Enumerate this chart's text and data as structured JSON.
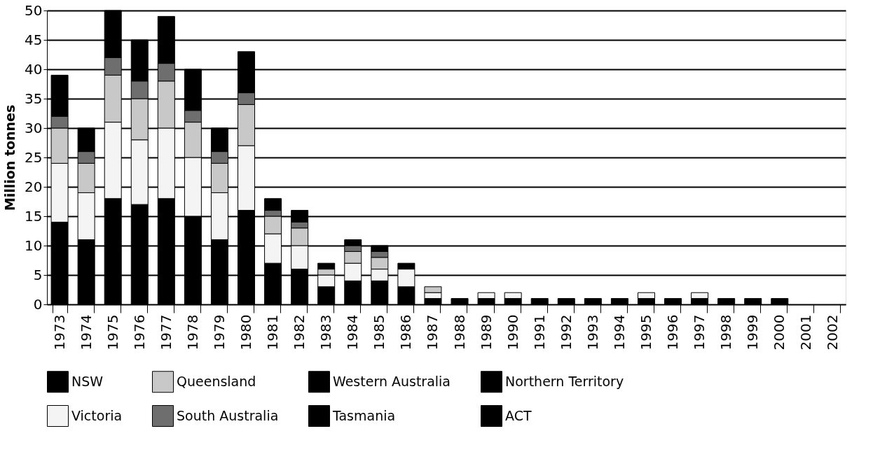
{
  "chart_data": {
    "type": "bar",
    "stacked": true,
    "ylabel": "Million tonnes",
    "categories": [
      "1973",
      "1974",
      "1975",
      "1976",
      "1977",
      "1978",
      "1979",
      "1980",
      "1981",
      "1982",
      "1983",
      "1984",
      "1985",
      "1986",
      "1987",
      "1988",
      "1989",
      "1990",
      "1991",
      "1992",
      "1993",
      "1994",
      "1995",
      "1996",
      "1997",
      "1998",
      "1999",
      "2000",
      "2001",
      "2002"
    ],
    "series": [
      {
        "name": "NSW",
        "color": "#000000",
        "values": [
          14,
          11,
          18,
          17,
          18,
          15,
          11,
          16,
          7,
          6,
          3,
          4,
          4,
          3,
          1,
          1,
          1,
          1,
          1,
          1,
          1,
          1,
          1,
          1,
          1,
          1,
          1,
          1,
          null,
          null
        ]
      },
      {
        "name": "Victoria",
        "color": "#f4f4f4",
        "values": [
          10,
          8,
          13,
          11,
          12,
          10,
          8,
          11,
          5,
          4,
          2,
          3,
          2,
          3,
          1,
          null,
          1,
          1,
          null,
          null,
          null,
          null,
          1,
          null,
          1,
          null,
          null,
          null,
          null,
          null
        ]
      },
      {
        "name": "Queensland",
        "color": "#c8c8c8",
        "values": [
          6,
          5,
          8,
          7,
          8,
          6,
          5,
          7,
          3,
          3,
          1,
          2,
          2,
          null,
          1,
          null,
          null,
          null,
          null,
          null,
          null,
          null,
          null,
          null,
          null,
          null,
          null,
          null,
          null,
          null
        ]
      },
      {
        "name": "South Australia",
        "color": "#6e6e6e",
        "values": [
          2,
          2,
          3,
          3,
          3,
          2,
          2,
          2,
          1,
          1,
          null,
          1,
          1,
          null,
          null,
          null,
          null,
          null,
          null,
          null,
          null,
          null,
          null,
          null,
          null,
          null,
          null,
          null,
          null,
          null
        ]
      },
      {
        "name": "Western Australia",
        "color": "#000000",
        "values": [
          7,
          4,
          8,
          7,
          8,
          7,
          4,
          7,
          2,
          2,
          1,
          1,
          1,
          1,
          null,
          null,
          null,
          null,
          null,
          null,
          null,
          null,
          null,
          null,
          null,
          null,
          null,
          null,
          null,
          null
        ]
      },
      {
        "name": "Tasmania",
        "color": "#000000",
        "values": [
          null,
          null,
          null,
          null,
          null,
          null,
          null,
          null,
          null,
          null,
          null,
          null,
          null,
          null,
          null,
          null,
          null,
          null,
          null,
          null,
          null,
          null,
          null,
          null,
          null,
          null,
          null,
          null,
          null,
          null
        ]
      },
      {
        "name": "Northern Territory",
        "color": "#000000",
        "values": [
          null,
          null,
          null,
          null,
          null,
          null,
          null,
          null,
          null,
          null,
          null,
          null,
          null,
          null,
          null,
          null,
          null,
          null,
          null,
          null,
          null,
          null,
          null,
          null,
          null,
          null,
          null,
          null,
          null,
          null
        ]
      },
      {
        "name": "ACT",
        "color": "#000000",
        "values": [
          null,
          null,
          null,
          null,
          null,
          null,
          null,
          null,
          null,
          null,
          null,
          null,
          null,
          null,
          null,
          null,
          null,
          null,
          null,
          null,
          null,
          null,
          null,
          null,
          null,
          null,
          null,
          null,
          null,
          null
        ]
      }
    ],
    "ylim": [
      0,
      50
    ],
    "yticks": [
      0,
      5,
      10,
      15,
      20,
      25,
      30,
      35,
      40,
      45,
      50
    ],
    "grid": "y",
    "legend": "bottom"
  }
}
